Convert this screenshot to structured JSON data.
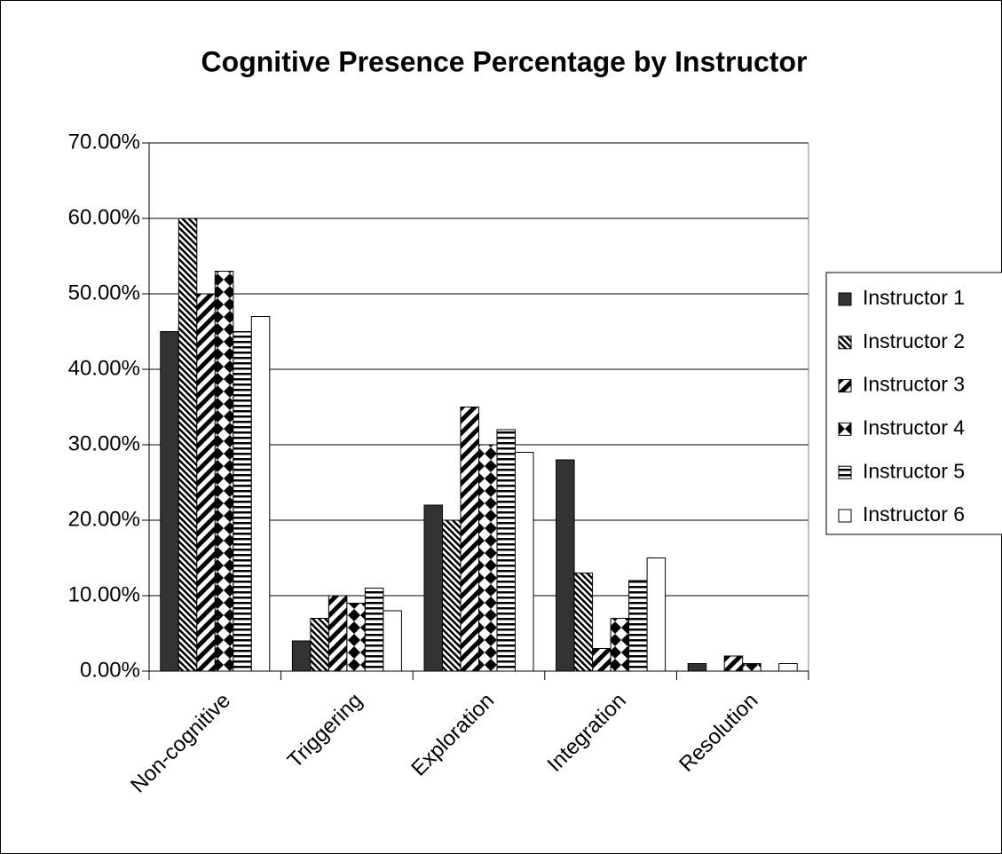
{
  "chart_data": {
    "type": "bar",
    "title": "Cognitive Presence Percentage by Instructor",
    "categories": [
      "Non-cognitive",
      "Triggering",
      "Exploration",
      "Integration",
      "Resolution"
    ],
    "series": [
      {
        "name": "Instructor 1",
        "color": "#333333",
        "pattern": "solid",
        "values": [
          45,
          4,
          22,
          28,
          1
        ]
      },
      {
        "name": "Instructor 2",
        "color": "#000000",
        "pattern": "dense-diagonal",
        "values": [
          60,
          7,
          20,
          13,
          0
        ]
      },
      {
        "name": "Instructor 3",
        "color": "#000000",
        "pattern": "wide-diagonal",
        "values": [
          50,
          10,
          35,
          3,
          2
        ]
      },
      {
        "name": "Instructor 4",
        "color": "#000000",
        "pattern": "diamond",
        "values": [
          53,
          9,
          30,
          7,
          1
        ]
      },
      {
        "name": "Instructor 5",
        "color": "#000000",
        "pattern": "horizontal",
        "values": [
          45,
          11,
          32,
          12,
          0
        ]
      },
      {
        "name": "Instructor 6",
        "color": "#ffffff",
        "pattern": "solid",
        "values": [
          47,
          8,
          29,
          15,
          1
        ]
      }
    ],
    "ylim": [
      0,
      70
    ],
    "yticks": [
      {
        "value": 0,
        "label": "0.00%"
      },
      {
        "value": 10,
        "label": "10.00%"
      },
      {
        "value": 20,
        "label": "20.00%"
      },
      {
        "value": 30,
        "label": "30.00%"
      },
      {
        "value": 40,
        "label": "40.00%"
      },
      {
        "value": 50,
        "label": "50.00%"
      },
      {
        "value": 60,
        "label": "60.00%"
      },
      {
        "value": 70,
        "label": "70.00%"
      }
    ],
    "grid": true,
    "legend": "right"
  }
}
